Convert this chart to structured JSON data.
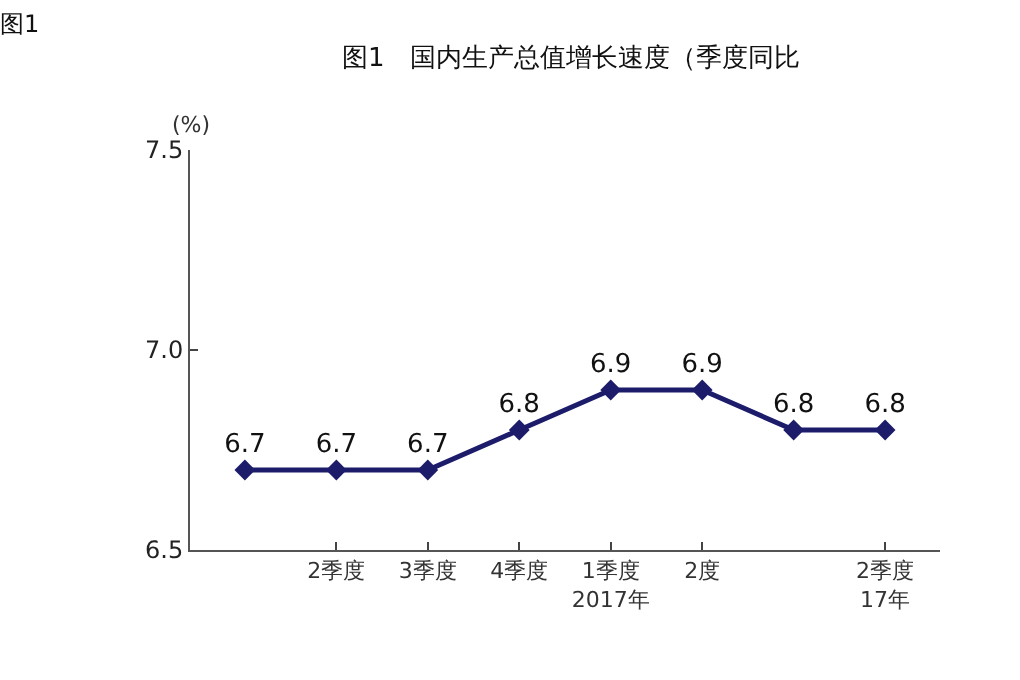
{
  "chart_data": {
    "type": "line",
    "title": "图1　国内生产总值增长速度（季度同比",
    "ylabel": "(%)",
    "annotations": [
      "图1"
    ],
    "categories": [
      null,
      "2季度",
      "3季度",
      "4季度",
      "1季度\n2017年",
      "2度",
      null,
      "2季度\n17年"
    ],
    "series": [
      {
        "color": "#1c1c6b",
        "values": [
          6.7,
          6.7,
          6.7,
          6.8,
          6.9,
          6.9,
          6.8,
          6.8
        ]
      }
    ],
    "ylim": [
      6.5,
      7.5
    ],
    "yticks": [
      {
        "value": 6.5,
        "label": "6.5"
      },
      {
        "value": 7.0,
        "label": "7.0"
      },
      {
        "value": 7.5,
        "label": "7.5"
      }
    ],
    "data_labels": true,
    "marker": "diamond",
    "line_style": "solid"
  }
}
